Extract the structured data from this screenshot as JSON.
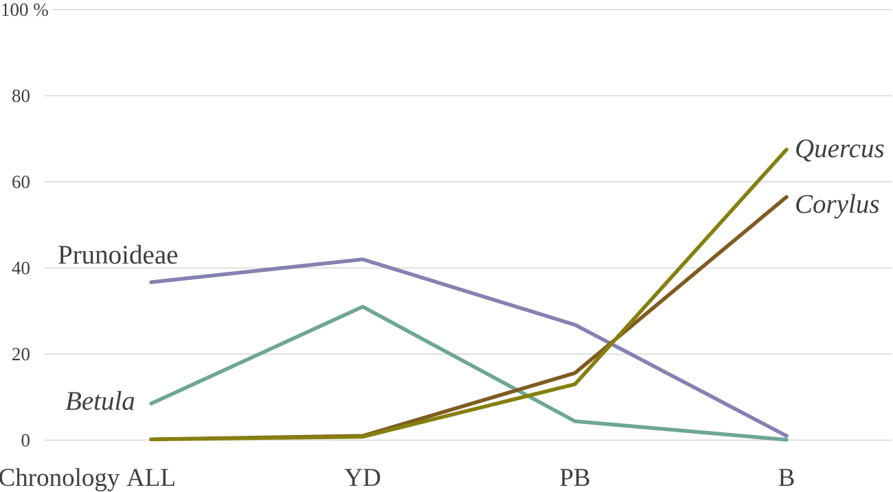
{
  "chart_data": {
    "type": "line",
    "categories": [
      "ALL",
      "YD",
      "PB",
      "B"
    ],
    "x_axis_title": "Chronology",
    "y_tick_values": [
      0,
      20,
      40,
      60,
      80,
      100
    ],
    "y_tick_labels": [
      "0",
      "20",
      "40",
      "60",
      "80",
      "100 %"
    ],
    "ylim": [
      0,
      100
    ],
    "grid": true,
    "legend_position": "inline-labels-next-to-lines",
    "series": [
      {
        "name": "Prunoideae",
        "values": [
          36.7,
          42,
          26.8,
          1
        ],
        "color": "#8582b1",
        "label_style": "normal"
      },
      {
        "name": "Betula",
        "values": [
          8.5,
          31,
          4.4,
          0.1
        ],
        "color": "#6fa695",
        "label_style": "italic"
      },
      {
        "name": "Corylus",
        "values": [
          0.2,
          1,
          15.6,
          56.5
        ],
        "color": "#7e5c20",
        "label_style": "italic"
      },
      {
        "name": "Quercus",
        "values": [
          0.2,
          0.8,
          13,
          67.5
        ],
        "color": "#85800f",
        "label_style": "italic"
      }
    ]
  },
  "colors": {
    "background": "#ffffff",
    "gridline": "#e0e0e0",
    "text": "#3f3f3f"
  }
}
